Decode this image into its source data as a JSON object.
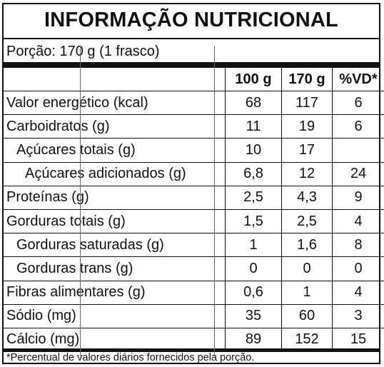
{
  "label": {
    "title": "INFORMAÇÃO NUTRICIONAL",
    "portion": "Porção: 170 g (1 frasco)",
    "columns": {
      "per_100g": "100 g",
      "per_portion": "170 g",
      "vd": "%VD*"
    },
    "rows": [
      {
        "name": "Valor energético (kcal)",
        "per_100g": "68",
        "per_portion": "117",
        "vd": "6",
        "indent": 0
      },
      {
        "name": "Carboidratos (g)",
        "per_100g": "11",
        "per_portion": "19",
        "vd": "6",
        "indent": 0
      },
      {
        "name": "Açúcares totais (g)",
        "per_100g": "10",
        "per_portion": "17",
        "vd": "",
        "indent": 1
      },
      {
        "name": "Açúcares adicionados (g)",
        "per_100g": "6,8",
        "per_portion": "12",
        "vd": "24",
        "indent": 2
      },
      {
        "name": "Proteínas (g)",
        "per_100g": "2,5",
        "per_portion": "4,3",
        "vd": "9",
        "indent": 0
      },
      {
        "name": "Gorduras totais (g)",
        "per_100g": "1,5",
        "per_portion": "2,5",
        "vd": "4",
        "indent": 0
      },
      {
        "name": "Gorduras saturadas (g)",
        "per_100g": "1",
        "per_portion": "1,6",
        "vd": "8",
        "indent": 1
      },
      {
        "name": "Gorduras trans (g)",
        "per_100g": "0",
        "per_portion": "0",
        "vd": "0",
        "indent": 1
      },
      {
        "name": "Fibras alimentares (g)",
        "per_100g": "0,6",
        "per_portion": "1",
        "vd": "4",
        "indent": 0
      },
      {
        "name": "Sódio (mg)",
        "per_100g": "35",
        "per_portion": "60",
        "vd": "3",
        "indent": 0
      },
      {
        "name": "Cálcio (mg)",
        "per_100g": "89",
        "per_portion": "152",
        "vd": "15",
        "indent": 0
      }
    ],
    "footnote": "*Percentual de valores diários fornecidos pela porção."
  }
}
